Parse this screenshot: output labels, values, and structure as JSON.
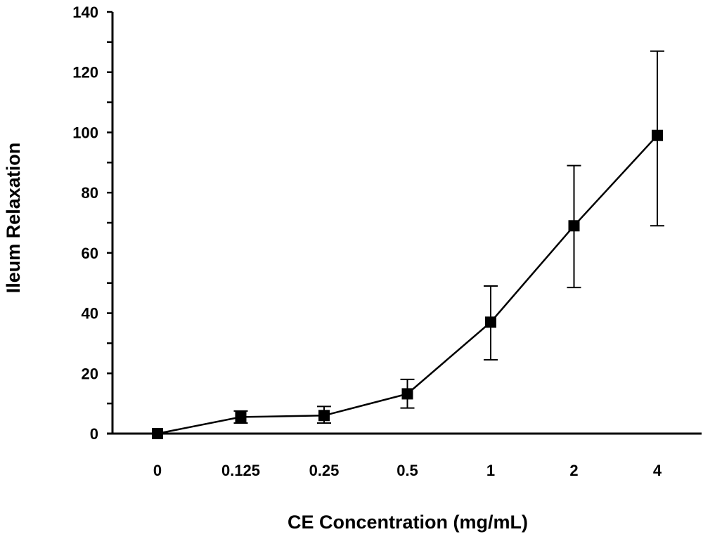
{
  "chart_data": {
    "type": "line",
    "xlabel": "CE Concentration (mg/mL)",
    "ylabel": "Ileum Relaxation",
    "categories": [
      "0",
      "0.125",
      "0.25",
      "0.5",
      "1",
      "2",
      "4"
    ],
    "ylim": [
      0,
      140
    ],
    "yticks": [
      0,
      20,
      40,
      60,
      80,
      100,
      120,
      140
    ],
    "grid": false,
    "marker": "square",
    "series": [
      {
        "values": [
          0,
          5.5,
          6,
          13.2,
          37,
          69,
          99
        ],
        "error_upper": [
          0,
          7.5,
          9,
          18,
          49,
          89,
          127
        ],
        "error_lower": [
          0,
          3.5,
          3.5,
          8.5,
          24.5,
          48.5,
          69
        ]
      }
    ]
  },
  "colors": {
    "line": "#000000",
    "background": "#ffffff"
  }
}
